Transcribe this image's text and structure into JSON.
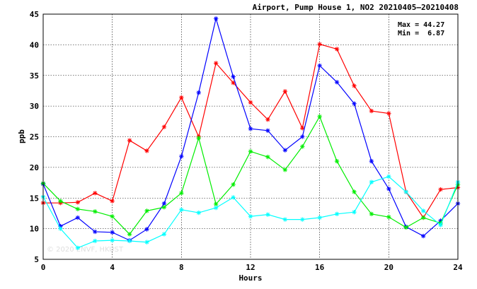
{
  "chart_data": {
    "type": "line",
    "title": "Airport, Pump House 1, NO2 20210405—20210408",
    "xlabel": "Hours",
    "ylabel": "ppb",
    "xlim": [
      0,
      24
    ],
    "ylim": [
      5,
      45
    ],
    "xticks": [
      0,
      4,
      8,
      12,
      16,
      20,
      24
    ],
    "yticks": [
      5,
      10,
      15,
      20,
      25,
      30,
      35,
      40,
      45
    ],
    "grid": true,
    "stats": {
      "max_label": "Max = 44.27",
      "min_label": "Min =  6.87"
    },
    "watermark": "© 2020 ENVF, HKUST",
    "x": [
      0,
      1,
      2,
      3,
      4,
      5,
      6,
      7,
      8,
      9,
      10,
      11,
      12,
      13,
      14,
      15,
      16,
      17,
      18,
      19,
      20,
      21,
      22,
      23,
      24
    ],
    "series": [
      {
        "color": "#ff0000",
        "values": [
          14.2,
          14.2,
          14.3,
          15.8,
          14.5,
          24.4,
          22.7,
          26.6,
          31.4,
          25.0,
          37.0,
          33.8,
          30.6,
          27.8,
          32.4,
          26.4,
          40.1,
          39.3,
          33.3,
          29.2,
          28.8,
          16.0,
          11.8,
          16.4,
          16.7
        ]
      },
      {
        "color": "#0000ff",
        "values": [
          17.3,
          10.4,
          11.8,
          9.5,
          9.4,
          8.1,
          9.9,
          14.1,
          21.8,
          32.2,
          44.27,
          34.8,
          26.3,
          26.0,
          22.8,
          25.0,
          36.6,
          33.9,
          30.4,
          21.0,
          16.5,
          10.3,
          8.8,
          11.3,
          14.1
        ]
      },
      {
        "color": "#00ee00",
        "values": [
          17.4,
          14.5,
          13.2,
          12.8,
          12.0,
          9.1,
          12.9,
          13.5,
          15.8,
          24.8,
          14.0,
          17.2,
          22.6,
          21.7,
          19.6,
          23.4,
          28.3,
          21.0,
          16.0,
          12.4,
          11.9,
          10.2,
          11.8,
          10.9,
          17.2
        ]
      },
      {
        "color": "#00ffff",
        "values": [
          15.2,
          10.0,
          6.87,
          8.0,
          8.1,
          8.0,
          7.8,
          9.1,
          13.1,
          12.6,
          13.4,
          15.1,
          12.0,
          12.3,
          11.5,
          11.5,
          11.8,
          12.4,
          12.7,
          17.6,
          18.5,
          16.0,
          12.9,
          10.6,
          17.6
        ]
      }
    ]
  }
}
